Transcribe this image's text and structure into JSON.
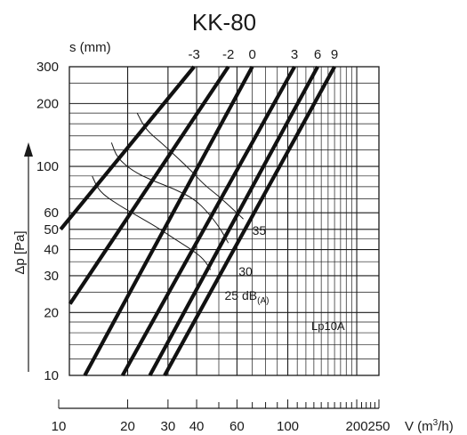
{
  "chart_data": {
    "type": "line",
    "title": "KK-80",
    "xlabel": "V (m³/h)",
    "xlabel_parts": {
      "base": "V (m",
      "sup": "3",
      "tail": "/h)"
    },
    "ylabel": "Δp [Pa]",
    "xscale": "log",
    "yscale": "log",
    "xlim": [
      10,
      250
    ],
    "ylim": [
      10,
      300
    ],
    "grid": true,
    "xticks": [
      10,
      20,
      30,
      40,
      60,
      100,
      200,
      250
    ],
    "yticks": [
      10,
      20,
      30,
      40,
      50,
      60,
      100,
      200,
      300
    ],
    "setting_label": "s (mm)",
    "series": [
      {
        "name": "-3",
        "points": [
          [
            10.2,
            50
          ],
          [
            39,
            300
          ]
        ]
      },
      {
        "name": "-2",
        "points": [
          [
            11.2,
            22
          ],
          [
            55,
            300
          ]
        ]
      },
      {
        "name": "0",
        "points": [
          [
            13,
            10
          ],
          [
            70,
            300
          ]
        ]
      },
      {
        "name": "3",
        "points": [
          [
            19,
            10
          ],
          [
            107,
            300
          ]
        ]
      },
      {
        "name": "6",
        "points": [
          [
            25,
            10
          ],
          [
            135,
            300
          ]
        ]
      },
      {
        "name": "9",
        "points": [
          [
            29,
            10
          ],
          [
            160,
            300
          ]
        ]
      }
    ],
    "noise_curves": [
      {
        "name": "35",
        "points": [
          [
            22,
            180
          ],
          [
            24,
            150
          ],
          [
            28,
            130
          ],
          [
            33,
            110
          ],
          [
            38,
            95
          ],
          [
            43,
            82
          ],
          [
            50,
            72
          ],
          [
            58,
            62
          ],
          [
            64,
            56
          ]
        ]
      },
      {
        "name": "30",
        "points": [
          [
            17,
            130
          ],
          [
            18,
            110
          ],
          [
            21,
            95
          ],
          [
            26,
            85
          ],
          [
            32,
            78
          ],
          [
            39,
            70
          ],
          [
            45,
            60
          ],
          [
            51,
            50
          ],
          [
            55,
            43
          ]
        ]
      },
      {
        "name": "25 dB(A)",
        "points": [
          [
            14,
            90
          ],
          [
            15,
            76
          ],
          [
            18,
            66
          ],
          [
            22,
            58
          ],
          [
            27,
            51
          ],
          [
            32,
            45
          ],
          [
            38,
            40
          ],
          [
            43,
            36
          ],
          [
            46,
            32
          ]
        ]
      }
    ],
    "noise_labels": [
      {
        "text": "35",
        "x": 70,
        "y": 47
      },
      {
        "text": "30",
        "x": 61,
        "y": 30
      },
      {
        "text": "25 dB",
        "sub": "(A)",
        "x": 53,
        "y": 23
      }
    ],
    "annotation": "Lp10A"
  }
}
